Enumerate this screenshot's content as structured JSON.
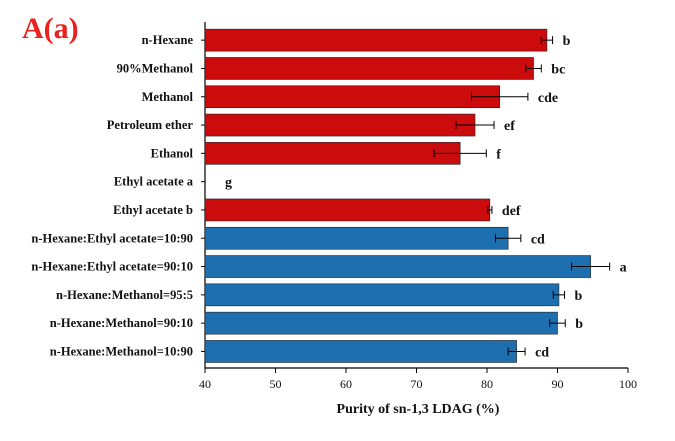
{
  "panel_label": "A(a)",
  "chart_data": {
    "type": "bar",
    "orientation": "horizontal",
    "xlabel": "Purity of sn-1,3 LDAG (%)",
    "ylabel": "",
    "xlim": [
      40,
      100
    ],
    "xticks": [
      40,
      50,
      60,
      70,
      80,
      90,
      100
    ],
    "grid": false,
    "categories": [
      "n-Hexane",
      "90%Methanol",
      "Methanol",
      "Petroleum ether",
      "Ethanol",
      "Ethyl acetate a",
      "Ethyl acetate b",
      "n-Hexane:Ethyl acetate=10:90",
      "n-Hexane:Ethyl acetate=90:10",
      "n-Hexane:Methanol=95:5",
      "n-Hexane:Methanol=90:10",
      "n-Hexane:Methanol=10:90"
    ],
    "values": [
      88.5,
      86.6,
      81.8,
      78.3,
      76.2,
      null,
      80.4,
      83.0,
      94.7,
      90.2,
      90.0,
      84.2
    ],
    "errors": [
      0.8,
      1.1,
      4.0,
      2.7,
      3.7,
      null,
      0.3,
      1.8,
      2.7,
      0.8,
      1.1,
      1.2
    ],
    "significance": [
      "b",
      "bc",
      "cde",
      "ef",
      "f",
      "g",
      "def",
      "cd",
      "a",
      "b",
      "b",
      "cd"
    ],
    "bar_colors": [
      "#cc0c0c",
      "#cc0c0c",
      "#cc0c0c",
      "#cc0c0c",
      "#cc0c0c",
      "#cc0c0c",
      "#cc0c0c",
      "#1e6fb0",
      "#1e6fb0",
      "#1e6fb0",
      "#1e6fb0",
      "#1e6fb0"
    ]
  }
}
